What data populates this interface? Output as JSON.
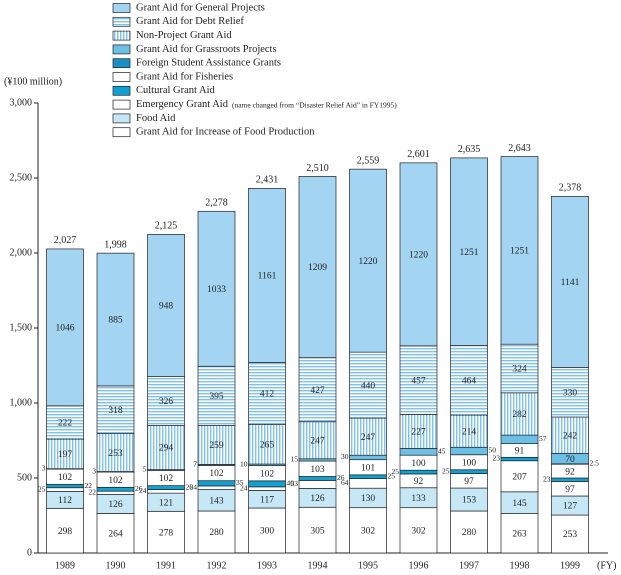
{
  "chart_data": {
    "type": "stacked_bar",
    "y_axis_label": "(¥100 million)",
    "x_axis_label": "(FY)",
    "categories": [
      "1989",
      "1990",
      "1991",
      "1992",
      "1993",
      "1994",
      "1995",
      "1996",
      "1997",
      "1998",
      "1999"
    ],
    "ylim": [
      0,
      3000
    ],
    "yticks": [
      0,
      500,
      {
        "value": 1000,
        "label": "1,000"
      },
      {
        "value": 1500,
        "label": "1,500"
      },
      {
        "value": 2000,
        "label": "2,000"
      },
      {
        "value": 2500,
        "label": "2,500"
      },
      {
        "value": 3000,
        "label": "3,000"
      }
    ],
    "series": [
      {
        "name": "Grant Aid for General Projects",
        "color": "#a3d4f2",
        "values": [
          1046,
          885,
          948,
          1033,
          1161,
          1209,
          1220,
          1220,
          1251,
          1251,
          1141
        ]
      },
      {
        "name": "Grant Aid for Debt Relief",
        "color": "#a3d4f2",
        "hatch": "horizontal",
        "values": [
          222,
          318,
          326,
          395,
          412,
          427,
          440,
          457,
          464,
          324,
          330
        ]
      },
      {
        "name": "Non-Project Grant Aid",
        "color": "#a3d4f2",
        "hatch": "vertical",
        "values": [
          197,
          253,
          294,
          259,
          265,
          247,
          247,
          227,
          214,
          282,
          242
        ]
      },
      {
        "name": "Grant Aid for Grassroots Projects",
        "color": "#6cc0e6",
        "values": [
          3,
          3,
          5,
          7,
          10,
          15,
          30,
          45,
          50,
          57,
          70
        ]
      },
      {
        "name": "Foreign Student Assistance Grants",
        "color": "#1b8fc4",
        "values": [
          null,
          null,
          null,
          null,
          null,
          null,
          null,
          null,
          null,
          null,
          2.5
        ]
      },
      {
        "name": "Grant Aid for Fisheries",
        "color": "#ffffff",
        "values": [
          102,
          102,
          102,
          102,
          102,
          103,
          101,
          100,
          100,
          91,
          92
        ]
      },
      {
        "name": "Cultural Grant Aid",
        "color": "#10a0d2",
        "values": [
          22,
          26,
          26,
          35,
          40,
          26,
          25,
          25,
          25,
          23,
          23
        ]
      },
      {
        "name": "Emergency Grant Aid",
        "note": "(name changed from “Disaster Relief Aid” in FY1995)",
        "color": "#ffffff",
        "values": [
          25,
          22,
          24,
          24,
          24,
          53,
          64,
          92,
          97,
          207,
          97
        ]
      },
      {
        "name": "Food Aid",
        "color": "#c6e7f6",
        "values": [
          112,
          126,
          121,
          143,
          117,
          126,
          130,
          133,
          153,
          145,
          127
        ]
      },
      {
        "name": "Grant Aid for Increase of Food Production",
        "color": "#ffffff",
        "values": [
          298,
          264,
          278,
          280,
          300,
          305,
          302,
          302,
          280,
          263,
          253
        ]
      }
    ],
    "totals": [
      2027,
      1998,
      2125,
      2278,
      2431,
      2510,
      2559,
      2601,
      2635,
      2643,
      2378
    ],
    "total_labels": [
      "2,027",
      "1,998",
      "2,125",
      "2,278",
      "2,431",
      "2,510",
      "2,559",
      "2,601",
      "2,635",
      "2,643",
      "2,378"
    ]
  }
}
